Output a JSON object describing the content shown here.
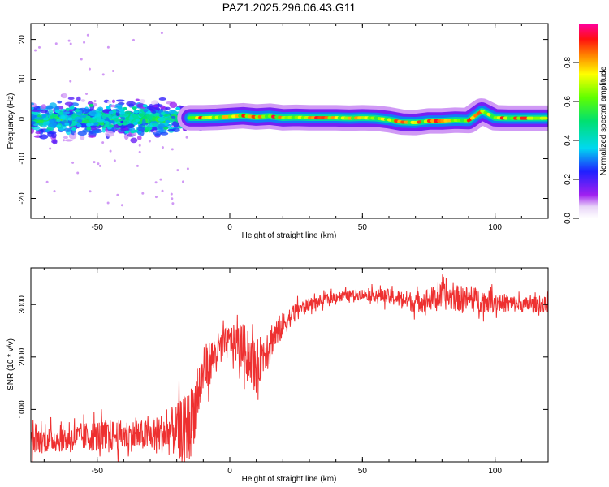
{
  "title": "PAZ1.2025.296.06.43.G11",
  "chart_data": [
    {
      "type": "heatmap",
      "xlabel": "Height of straight line (km)",
      "ylabel": "Frequency (Hz)",
      "xlim": [
        -75,
        120
      ],
      "ylim": [
        -25,
        24
      ],
      "xticks": [
        -50,
        0,
        50,
        100
      ],
      "yticks": [
        -20,
        -10,
        0,
        10,
        20
      ],
      "colorbar": {
        "label": "Normalized spectral amplitude",
        "range": [
          0,
          1
        ],
        "ticks": [
          "0.0",
          "0.2",
          "0.4",
          "0.6",
          "0.8"
        ]
      },
      "ridge": {
        "comment": "dominant frequency of the tone, in Hz, vs height in km",
        "x": [
          -15,
          -10,
          -5,
          0,
          5,
          10,
          15,
          20,
          25,
          30,
          35,
          40,
          45,
          50,
          55,
          60,
          65,
          70,
          75,
          80,
          85,
          90,
          95,
          100,
          105,
          110,
          120
        ],
        "freq": [
          0.3,
          0.3,
          0.4,
          0.6,
          0.8,
          0.5,
          0.7,
          0.3,
          0.4,
          0.3,
          0.3,
          0.3,
          0.2,
          0.3,
          0.2,
          -0.2,
          -0.8,
          -0.9,
          -0.5,
          -0.5,
          -0.3,
          -0.4,
          2.0,
          0.3,
          0.2,
          0.2,
          0.2
        ]
      },
      "noisy_region_x": [
        -75,
        -15
      ],
      "noisy_region_freq_spread": [
        -8,
        8
      ]
    },
    {
      "type": "line",
      "xlabel": "Height of straight line (km)",
      "ylabel": "SNR (10 * v/v)",
      "xlim": [
        -75,
        120
      ],
      "ylim": [
        0,
        3700
      ],
      "xticks": [
        -50,
        0,
        50,
        100
      ],
      "yticks": [
        1000,
        2000,
        3000
      ],
      "series": [
        {
          "name": "SNR",
          "color": "#ee3030",
          "x": [
            -75,
            -60,
            -50,
            -40,
            -30,
            -20,
            -15,
            -10,
            -5,
            0,
            5,
            10,
            15,
            20,
            25,
            30,
            40,
            50,
            60,
            70,
            80,
            90,
            100,
            110,
            120
          ],
          "y": [
            400,
            450,
            500,
            500,
            500,
            600,
            700,
            1700,
            2100,
            2300,
            2200,
            1800,
            2300,
            2600,
            2900,
            3000,
            3150,
            3200,
            3150,
            3050,
            3150,
            3100,
            3050,
            3000,
            3000
          ],
          "noise_amplitude": [
            250,
            250,
            300,
            300,
            300,
            500,
            700,
            500,
            350,
            300,
            450,
            500,
            350,
            250,
            150,
            120,
            100,
            100,
            150,
            200,
            250,
            250,
            200,
            150,
            150
          ]
        }
      ]
    }
  ]
}
